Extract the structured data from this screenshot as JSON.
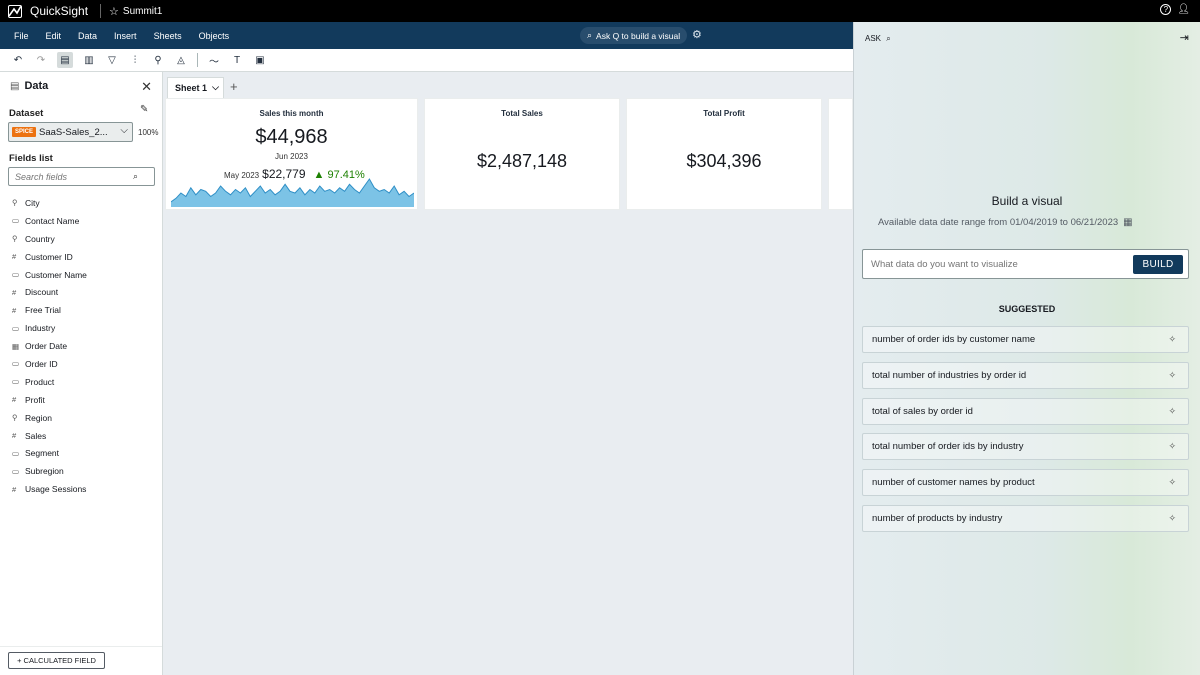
{
  "app": {
    "name": "QuickSight",
    "analysis_name": "Summit1"
  },
  "menu": {
    "items": [
      "File",
      "Edit",
      "Data",
      "Insert",
      "Sheets",
      "Objects"
    ],
    "ask_prompt": "Ask Q to build a visual"
  },
  "data_panel": {
    "title": "Data",
    "dataset_label": "Dataset",
    "dataset_badge": "SPICE",
    "dataset_name": "SaaS-Sales_2...",
    "dataset_percent": "100%",
    "fields_label": "Fields list",
    "search_placeholder": "Search fields",
    "fields": [
      {
        "name": "City",
        "icon": "geo-icon",
        "glyph": "⚲"
      },
      {
        "name": "Contact Name",
        "icon": "text-field-icon",
        "glyph": "▭"
      },
      {
        "name": "Country",
        "icon": "geo-icon",
        "glyph": "⚲"
      },
      {
        "name": "Customer ID",
        "icon": "number-field-icon",
        "glyph": "#"
      },
      {
        "name": "Customer Name",
        "icon": "text-field-icon",
        "glyph": "▭"
      },
      {
        "name": "Discount",
        "icon": "number-field-icon",
        "glyph": "#"
      },
      {
        "name": "Free Trial",
        "icon": "number-field-icon",
        "glyph": "#"
      },
      {
        "name": "Industry",
        "icon": "text-field-icon",
        "glyph": "▭"
      },
      {
        "name": "Order Date",
        "icon": "date-field-icon",
        "glyph": "▦"
      },
      {
        "name": "Order ID",
        "icon": "text-field-icon",
        "glyph": "▭"
      },
      {
        "name": "Product",
        "icon": "text-field-icon",
        "glyph": "▭"
      },
      {
        "name": "Profit",
        "icon": "number-field-icon",
        "glyph": "#"
      },
      {
        "name": "Region",
        "icon": "geo-icon",
        "glyph": "⚲"
      },
      {
        "name": "Sales",
        "icon": "number-field-icon",
        "glyph": "#"
      },
      {
        "name": "Segment",
        "icon": "text-field-icon",
        "glyph": "▭"
      },
      {
        "name": "Subregion",
        "icon": "text-field-icon",
        "glyph": "▭"
      },
      {
        "name": "Usage Sessions",
        "icon": "number-field-icon",
        "glyph": "#"
      }
    ],
    "calculated_field": "+ CALCULATED FIELD"
  },
  "sheet": {
    "tab_label": "Sheet 1"
  },
  "kpis": {
    "sales_this_month": {
      "title": "Sales this month",
      "value": "$44,968",
      "period": "Jun 2023",
      "compare_label": "May 2023",
      "compare_value": "$22,779",
      "change": "▲ 97.41%"
    },
    "total_sales": {
      "title": "Total Sales",
      "value": "$2,487,148"
    },
    "total_profit": {
      "title": "Total Profit",
      "value": "$304,396"
    }
  },
  "sparkline": {
    "color": "#7cc3e6",
    "values": [
      3,
      5,
      8,
      6,
      11,
      7,
      10,
      9,
      6,
      8,
      12,
      9,
      7,
      10,
      8,
      11,
      6,
      9,
      12,
      8,
      10,
      7,
      9,
      13,
      9,
      8,
      11,
      7,
      10,
      8,
      12,
      9,
      10,
      8,
      11,
      9,
      13,
      10,
      8,
      12,
      16,
      11,
      9,
      10,
      8,
      12,
      7,
      9,
      6,
      8
    ]
  },
  "q_panel": {
    "header": "ASK",
    "title": "Build a visual",
    "date_range": "Available data date range from 01/04/2019 to 06/21/2023",
    "input_placeholder": "What data do you want to visualize",
    "build_label": "BUILD",
    "suggested_label": "SUGGESTED",
    "suggestions": [
      "number of order ids by customer name",
      "total number of industries by order id",
      "total of sales by order id",
      "total number of order ids by industry",
      "number of customer names by product",
      "number of products by industry"
    ]
  }
}
